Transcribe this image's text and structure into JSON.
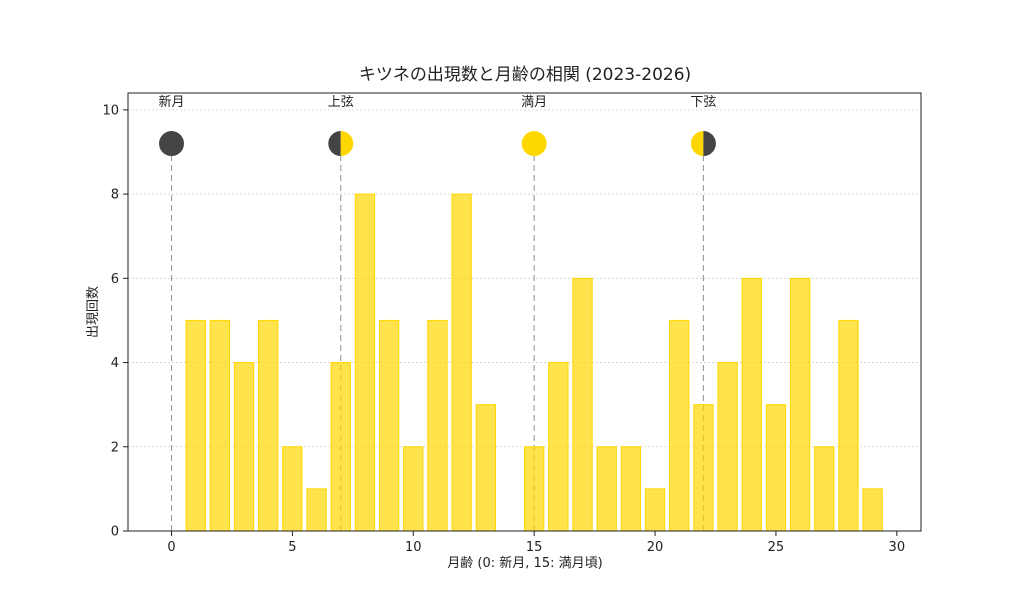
{
  "chart_data": {
    "type": "bar",
    "title": "キツネの出現数と月齢の相関 (2023-2026)",
    "xlabel": "月齢 (0: 新月, 15: 満月頃)",
    "ylabel": "出現回数",
    "xlim": [
      -1.8,
      31
    ],
    "ylim": [
      0,
      10.4
    ],
    "xticks": [
      0,
      5,
      10,
      15,
      20,
      25,
      30
    ],
    "yticks": [
      0,
      2,
      4,
      6,
      8,
      10
    ],
    "grid": "horizontal",
    "bar_color": "#FFD700",
    "bars": [
      {
        "x": 1,
        "value": 5
      },
      {
        "x": 2,
        "value": 5
      },
      {
        "x": 3,
        "value": 4
      },
      {
        "x": 4,
        "value": 5
      },
      {
        "x": 5,
        "value": 2
      },
      {
        "x": 6,
        "value": 1
      },
      {
        "x": 7,
        "value": 4
      },
      {
        "x": 8,
        "value": 8
      },
      {
        "x": 9,
        "value": 5
      },
      {
        "x": 10,
        "value": 2
      },
      {
        "x": 11,
        "value": 5
      },
      {
        "x": 12,
        "value": 8
      },
      {
        "x": 13,
        "value": 3
      },
      {
        "x": 15,
        "value": 2
      },
      {
        "x": 16,
        "value": 4
      },
      {
        "x": 17,
        "value": 6
      },
      {
        "x": 18,
        "value": 2
      },
      {
        "x": 19,
        "value": 2
      },
      {
        "x": 20,
        "value": 1
      },
      {
        "x": 21,
        "value": 5
      },
      {
        "x": 22,
        "value": 3
      },
      {
        "x": 23,
        "value": 4
      },
      {
        "x": 24,
        "value": 6
      },
      {
        "x": 25,
        "value": 3
      },
      {
        "x": 26,
        "value": 6
      },
      {
        "x": 27,
        "value": 2
      },
      {
        "x": 28,
        "value": 5
      },
      {
        "x": 29,
        "value": 1
      }
    ],
    "moon_phases": [
      {
        "x": 0,
        "label": "新月",
        "phase": "new"
      },
      {
        "x": 7,
        "label": "上弦",
        "phase": "first-quarter"
      },
      {
        "x": 15,
        "label": "満月",
        "phase": "full"
      },
      {
        "x": 22,
        "label": "下弦",
        "phase": "last-quarter"
      }
    ],
    "moon_light_color": "#FFD700",
    "moon_dark_color": "#444444"
  }
}
